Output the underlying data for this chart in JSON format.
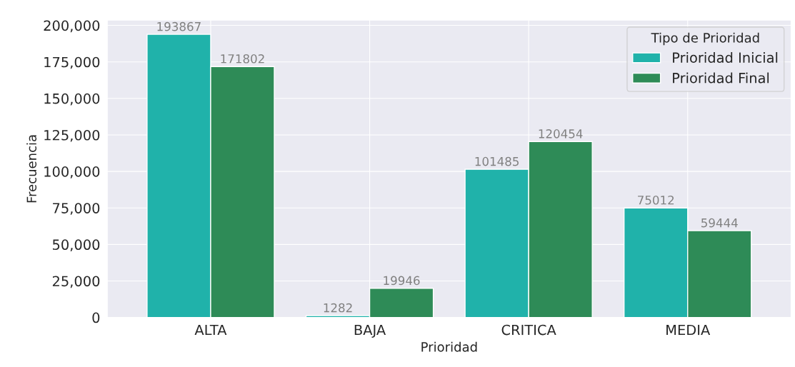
{
  "chart_data": {
    "type": "bar",
    "xlabel": "Prioridad",
    "ylabel": "Frecuencia",
    "legend_title": "Tipo de Prioridad",
    "categories": [
      "ALTA",
      "BAJA",
      "CRITICA",
      "MEDIA"
    ],
    "series": [
      {
        "name": "Prioridad Inicial",
        "color": "#20b2aa",
        "values": [
          193867,
          1282,
          101485,
          75012
        ]
      },
      {
        "name": "Prioridad Final",
        "color": "#2e8b57",
        "values": [
          171802,
          19946,
          120454,
          59444
        ]
      }
    ],
    "ylim": [
      0,
      203560
    ],
    "yticks": [
      {
        "value": 0,
        "label": "0"
      },
      {
        "value": 25000,
        "label": "25,000"
      },
      {
        "value": 50000,
        "label": "50,000"
      },
      {
        "value": 75000,
        "label": "75,000"
      },
      {
        "value": 100000,
        "label": "100,000"
      },
      {
        "value": 125000,
        "label": "125,000"
      },
      {
        "value": 150000,
        "label": "150,000"
      },
      {
        "value": 175000,
        "label": "175,000"
      },
      {
        "value": 200000,
        "label": "200,000"
      }
    ],
    "grid": true,
    "legend": "top right",
    "data_labels": true
  }
}
